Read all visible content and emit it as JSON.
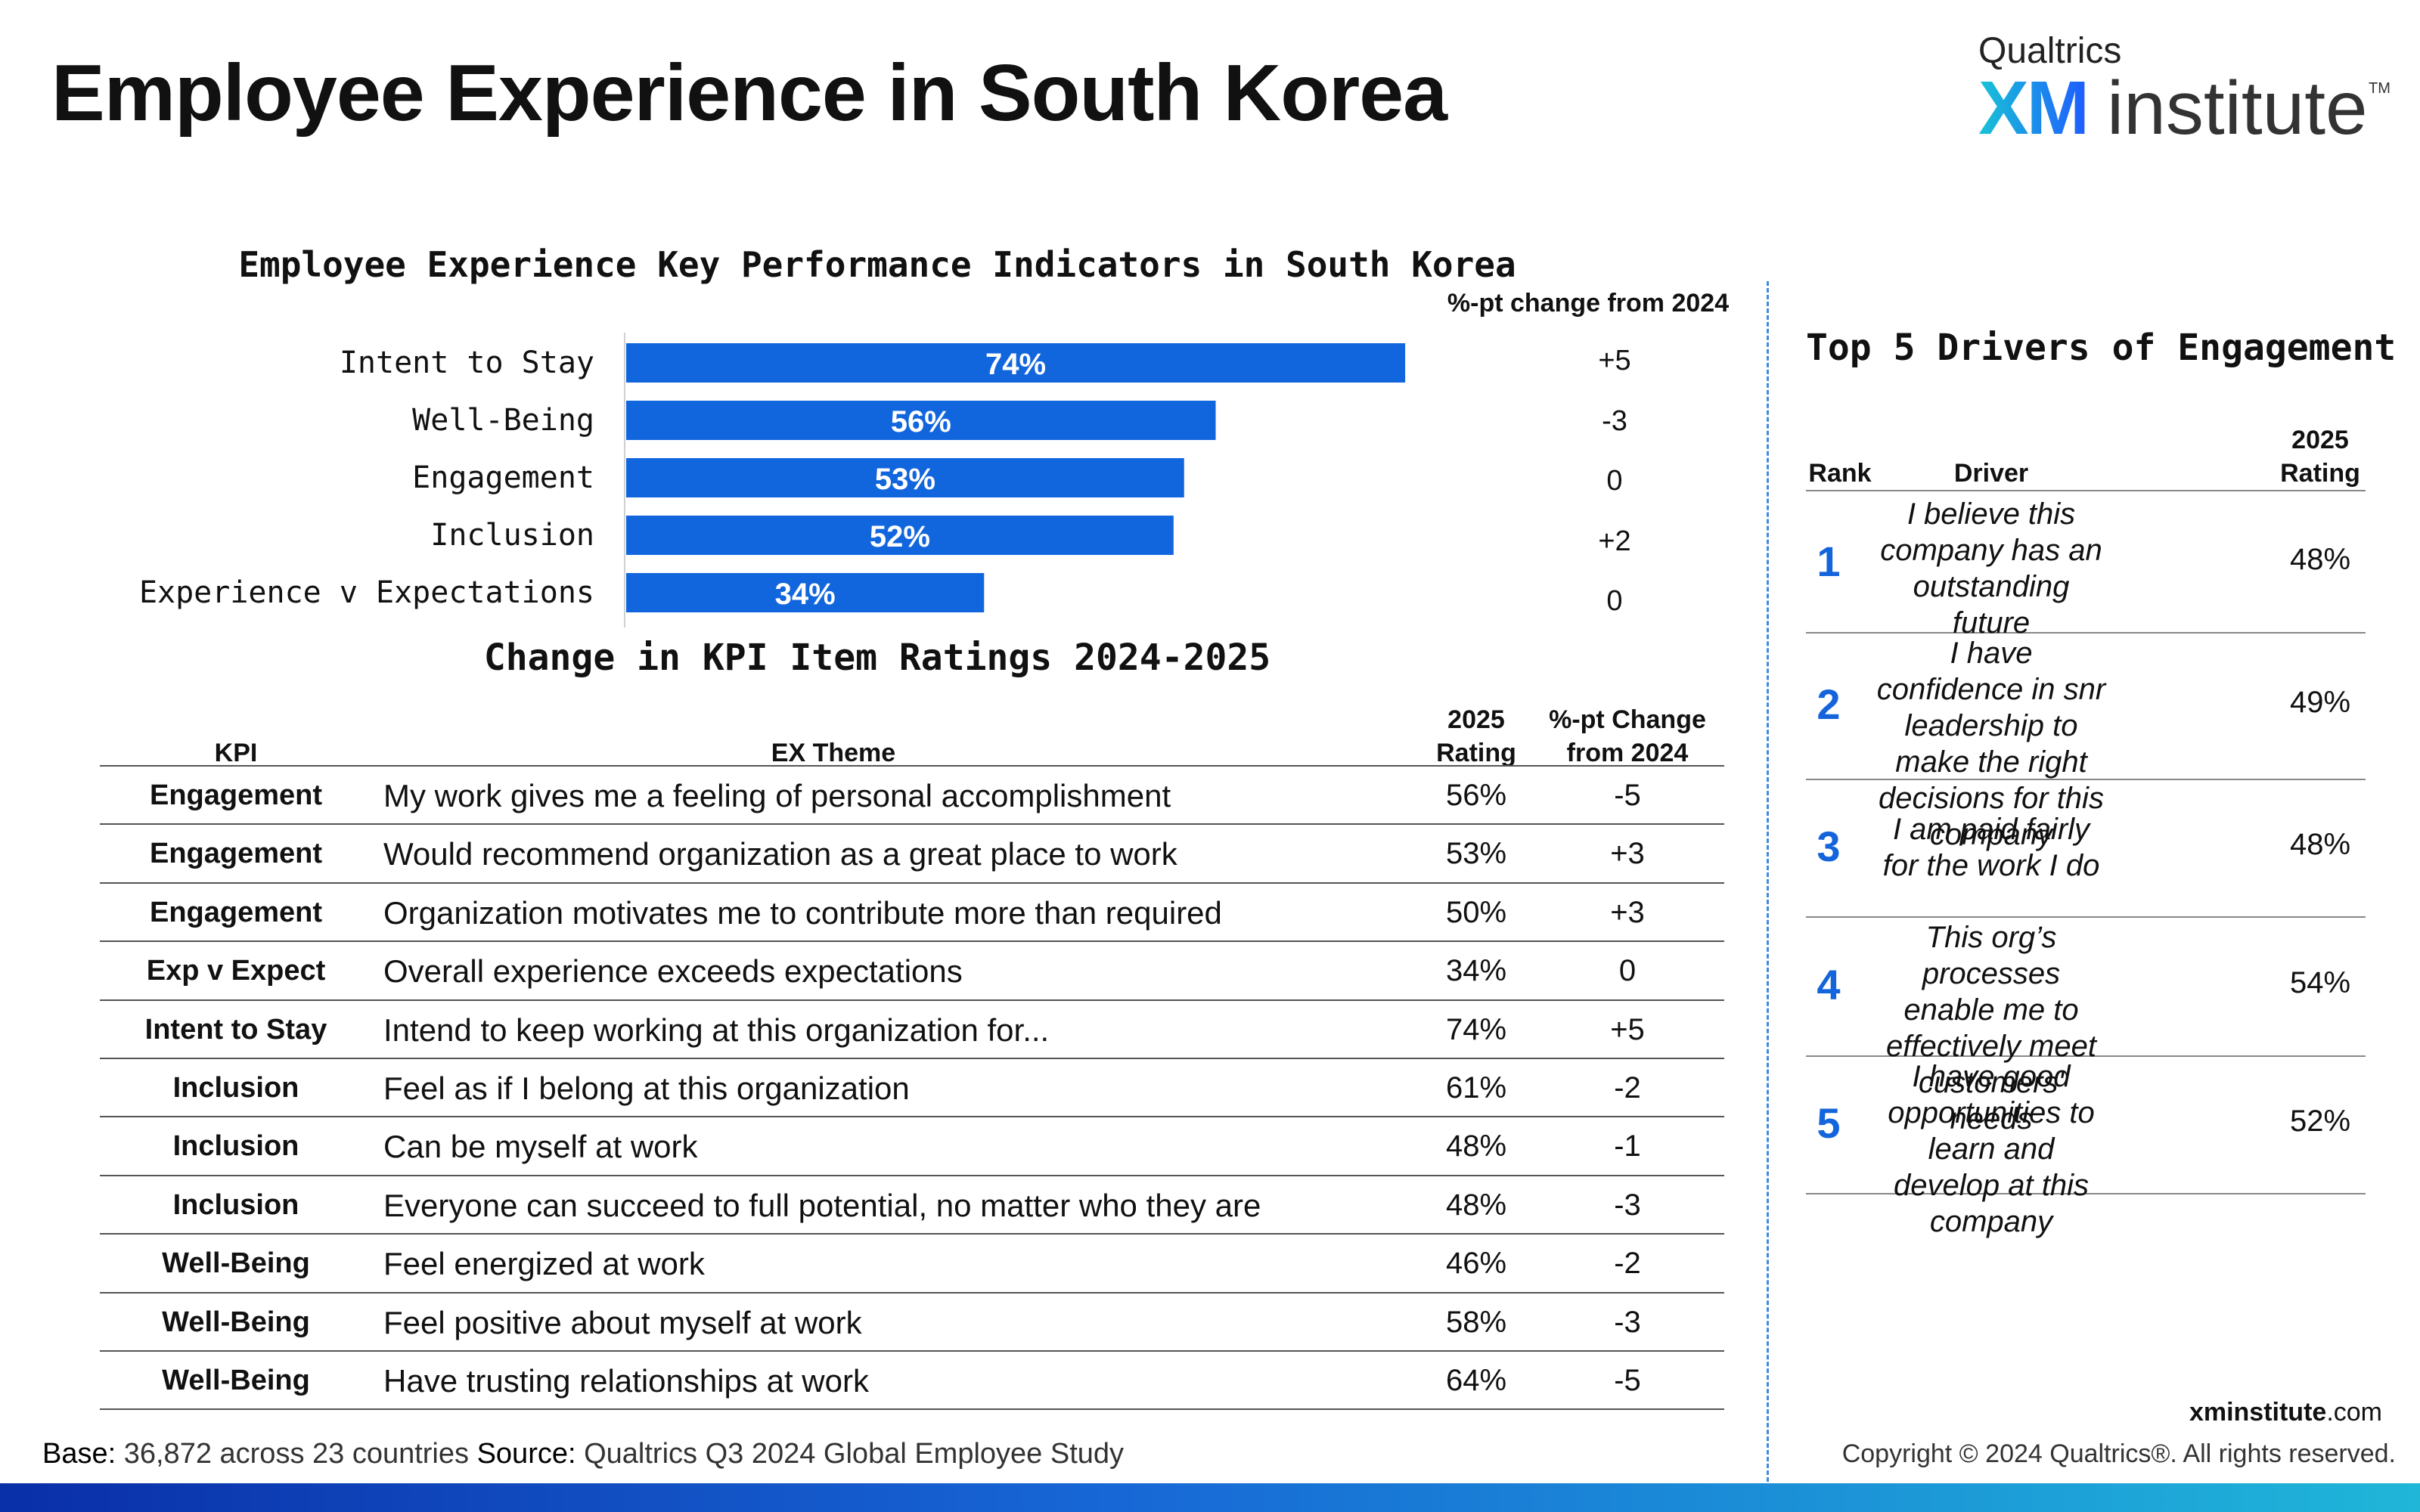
{
  "page": {
    "title": "Employee Experience in South Korea"
  },
  "logo": {
    "company": "Qualtrics",
    "brand_xm": "XM",
    "brand_word": "institute",
    "trademark": "TM"
  },
  "chart_data": {
    "type": "bar",
    "orientation": "horizontal",
    "title": "Employee Experience Key Performance Indicators in South Korea",
    "categories": [
      "Intent to Stay",
      "Well-Being",
      "Engagement",
      "Inclusion",
      "Experience v Expectations"
    ],
    "values": [
      74,
      56,
      53,
      52,
      34
    ],
    "value_labels": [
      "74%",
      "56%",
      "53%",
      "52%",
      "34%"
    ],
    "xlim": [
      0,
      100
    ],
    "bar_color": "#1266dd",
    "change_header": "%-pt change from 2024",
    "changes": [
      "+5",
      "-3",
      "0",
      "+2",
      "0"
    ]
  },
  "kpi_table": {
    "title": "Change in KPI Item Ratings 2024-2025",
    "headers": {
      "kpi": "KPI",
      "theme": "EX Theme",
      "rating_line1": "2025",
      "rating_line2": "Rating",
      "change_line1": "%-pt Change",
      "change_line2": "from 2024"
    },
    "rows": [
      {
        "kpi": "Engagement",
        "theme": "My work gives me a feeling of personal accomplishment",
        "rating": "56%",
        "change": "-5"
      },
      {
        "kpi": "Engagement",
        "theme": "Would recommend organization as a great place to work",
        "rating": "53%",
        "change": "+3"
      },
      {
        "kpi": "Engagement",
        "theme": "Organization motivates me to contribute more than required",
        "rating": "50%",
        "change": "+3"
      },
      {
        "kpi": "Exp v Expect",
        "theme": "Overall experience exceeds expectations",
        "rating": "34%",
        "change": "0"
      },
      {
        "kpi": "Intent to Stay",
        "theme": "Intend to keep working at this organization for...",
        "rating": "74%",
        "change": "+5"
      },
      {
        "kpi": "Inclusion",
        "theme": "Feel as if I belong at this organization",
        "rating": "61%",
        "change": "-2"
      },
      {
        "kpi": "Inclusion",
        "theme": "Can be myself at work",
        "rating": "48%",
        "change": "-1"
      },
      {
        "kpi": "Inclusion",
        "theme": "Everyone can succeed to full potential, no matter who they are",
        "rating": "48%",
        "change": "-3"
      },
      {
        "kpi": "Well-Being",
        "theme": "Feel energized at work",
        "rating": "46%",
        "change": "-2"
      },
      {
        "kpi": "Well-Being",
        "theme": "Feel positive about myself at work",
        "rating": "58%",
        "change": "-3"
      },
      {
        "kpi": "Well-Being",
        "theme": "Have trusting relationships at work",
        "rating": "64%",
        "change": "-5"
      }
    ]
  },
  "drivers": {
    "title": "Top 5 Drivers of Engagement",
    "headers": {
      "rank": "Rank",
      "driver": "Driver",
      "rating_line1": "2025",
      "rating_line2": "Rating"
    },
    "rows": [
      {
        "rank": "1",
        "driver": "I believe this company has an outstanding future",
        "rating": "48%"
      },
      {
        "rank": "2",
        "driver": "I have confidence in snr leadership to make the right decisions for this company",
        "rating": "49%"
      },
      {
        "rank": "3",
        "driver": "I am paid fairly for the work I do",
        "rating": "48%"
      },
      {
        "rank": "4",
        "driver": "This org’s processes enable me to effectively meet customers' needs",
        "rating": "54%"
      },
      {
        "rank": "5",
        "driver": "I have good opportunities to learn and develop at this company",
        "rating": "52%"
      }
    ]
  },
  "footer": {
    "base_label": "Base:",
    "base_text": "36,872 across 23 countries",
    "source_label": "Source:",
    "source_text": "Qualtrics Q3 2024 Global Employee Study",
    "site_bold": "xminstitute",
    "site_rest": ".com",
    "copyright": "Copyright © 2024 Qualtrics®. All rights reserved."
  }
}
